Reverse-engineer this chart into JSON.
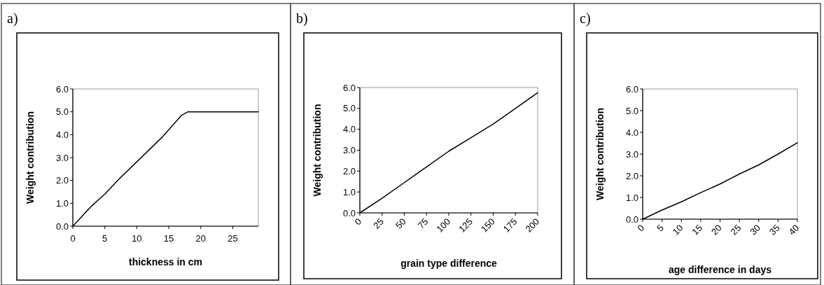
{
  "chart_data": [
    {
      "type": "line",
      "title": "a)",
      "xlabel": "thickness in cm",
      "ylabel": "Weight contribution",
      "xlim": [
        0,
        29
      ],
      "xticks": [
        0,
        5,
        10,
        15,
        20,
        25
      ],
      "ylim": [
        0,
        6
      ],
      "yticks": [
        {
          "value": 0,
          "label": "0.0"
        },
        {
          "value": 1,
          "label": "1.0"
        },
        {
          "value": 2,
          "label": "2.0"
        },
        {
          "value": 3,
          "label": "3.0"
        },
        {
          "value": 4,
          "label": "4.0"
        },
        {
          "value": 5,
          "label": "5.0"
        },
        {
          "value": 6,
          "label": "6.0"
        }
      ],
      "grid": false,
      "marker": "none",
      "line_style": "solid",
      "series": [
        {
          "color": "#000000",
          "x": [
            0,
            3,
            5,
            7,
            14,
            17,
            18,
            29
          ],
          "values": [
            0,
            0.9,
            1.4,
            2.0,
            3.9,
            4.85,
            5.0,
            5.0
          ]
        }
      ]
    },
    {
      "type": "line",
      "title": "b)",
      "xlabel": "grain type difference",
      "ylabel": "Weight contribution",
      "xlim": [
        0,
        200
      ],
      "xticks": [
        0,
        25,
        50,
        75,
        100,
        125,
        150,
        175,
        200
      ],
      "ylim": [
        0,
        6
      ],
      "yticks": [
        {
          "value": 0,
          "label": "0.0"
        },
        {
          "value": 1,
          "label": "1.0"
        },
        {
          "value": 2,
          "label": "2.0"
        },
        {
          "value": 3,
          "label": "3.0"
        },
        {
          "value": 4,
          "label": "4.0"
        },
        {
          "value": 5,
          "label": "5.0"
        },
        {
          "value": 6,
          "label": "6.0"
        }
      ],
      "grid": false,
      "marker": "none",
      "line_style": "solid",
      "series": [
        {
          "color": "#000000",
          "x": [
            0,
            25,
            50,
            75,
            100,
            125,
            150,
            175,
            200
          ],
          "values": [
            0,
            0.7,
            1.45,
            2.2,
            2.95,
            3.6,
            4.25,
            5.0,
            5.75
          ]
        }
      ]
    },
    {
      "type": "line",
      "title": "c)",
      "xlabel": "age difference in days",
      "ylabel": "Weight contribution",
      "xlim": [
        0,
        40
      ],
      "xticks": [
        0,
        5,
        10,
        15,
        20,
        25,
        30,
        35,
        40
      ],
      "ylim": [
        0,
        6
      ],
      "yticks": [
        {
          "value": 0,
          "label": "0.0"
        },
        {
          "value": 1,
          "label": "1.0"
        },
        {
          "value": 2,
          "label": "2.0"
        },
        {
          "value": 3,
          "label": "3.0"
        },
        {
          "value": 4,
          "label": "4.0"
        },
        {
          "value": 5,
          "label": "5.0"
        },
        {
          "value": 6,
          "label": "6.0"
        }
      ],
      "grid": false,
      "marker": "none",
      "line_style": "solid",
      "series": [
        {
          "color": "#000000",
          "x": [
            0,
            5,
            10,
            15,
            20,
            25,
            30,
            35,
            40
          ],
          "values": [
            0,
            0.42,
            0.8,
            1.22,
            1.62,
            2.08,
            2.5,
            3.0,
            3.52
          ]
        }
      ]
    }
  ]
}
